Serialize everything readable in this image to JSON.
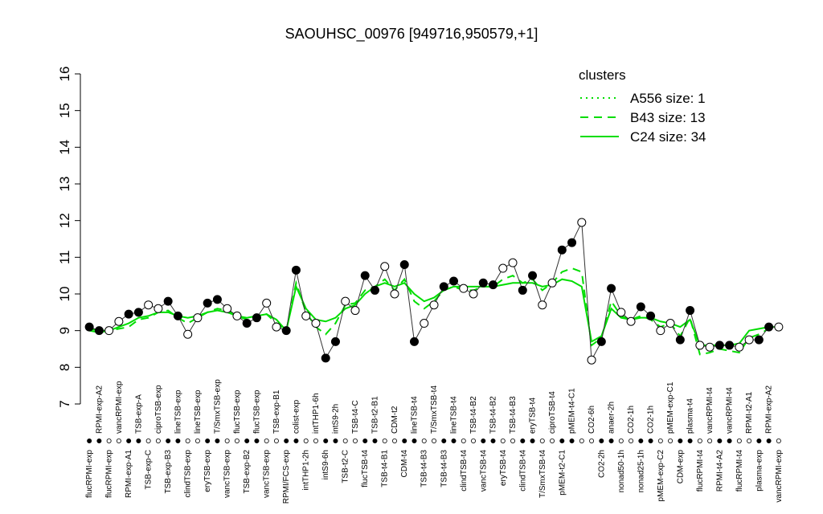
{
  "chart_data": {
    "type": "line",
    "title": "SAOUHSC_00976 [949716,950579,+1]",
    "categories": [
      "flucRPMI-exp",
      "RPMI-exp-A2",
      "flucRPMI-exp",
      "vancRPMI-exp",
      "RPMI-exp-A1",
      "TSB-exp-A",
      "TSB-exp-C",
      "ciproTSB-exp",
      "TSB-exp-B3",
      "lineTSB-exp",
      "clindTSB-exp",
      "lineTSB-exp",
      "eryTSB-exp",
      "T/SmxTSB-exp",
      "vancTSB-exp",
      "flucTSB-exp",
      "TSB-exp-B2",
      "flucTSB-exp",
      "vancTSB-exp",
      "TSB-exp-B1",
      "RPMI/FCS-exp",
      "colist-exp",
      "intTHP1-2h",
      "intTHP1-6h",
      "intS9-6h",
      "intS9-2h",
      "TSB-t2-C",
      "TSB-t4-C",
      "flucTSB-t4",
      "TSB-t2-B1",
      "TSB-t4-B1",
      "CDM-t2",
      "CDM-t4",
      "lineTSB-t4",
      "TSB-t4-B3",
      "T/SmxTSB-t4",
      "TSB-t4-B3",
      "lineTSB-t4",
      "clindTSB-t4",
      "TSB-t4-B2",
      "vancTSB-t4",
      "TSB-t4-B2",
      "eryTSB-t4",
      "TSB-t4-B3",
      "clindTSB-t4",
      "eryTSB-t4",
      "T/SmxTSB-t4",
      "ciproTSB-t4",
      "pMEM-t2-C1",
      "pMEM-t4-C1",
      null,
      "CO2-6h",
      "CO2-2h",
      "anaer-2h",
      "nonad50-1h",
      "CO2-1h",
      "nonad25-1h",
      "CO2-1h",
      "pMEM-exp-C2",
      "pMEM-exp-C1",
      "CDM-exp",
      "plasma-t4",
      "flucRPMI-t4",
      "vancRPMI-t4",
      "RPMI-t4-A2",
      "vancRPMI-t4",
      "flucRPMI-t4",
      "RPMI-t2-A1",
      "plasma-exp",
      "RPMI-exp-A2",
      "vancRPMI-exp"
    ],
    "values": [
      9.1,
      9.0,
      9.0,
      9.25,
      9.45,
      9.5,
      9.7,
      9.6,
      9.8,
      9.4,
      8.9,
      9.35,
      9.75,
      9.85,
      9.6,
      9.4,
      9.2,
      9.35,
      9.75,
      9.1,
      9.0,
      10.65,
      9.4,
      9.2,
      8.25,
      8.7,
      9.8,
      9.55,
      10.5,
      10.1,
      10.75,
      10.0,
      10.8,
      8.7,
      9.2,
      9.7,
      10.2,
      10.35,
      10.15,
      10.0,
      10.3,
      10.25,
      10.7,
      10.85,
      10.1,
      10.5,
      9.7,
      10.3,
      11.2,
      11.4,
      11.95,
      8.2,
      8.7,
      10.15,
      9.5,
      9.25,
      9.65,
      9.4,
      9.0,
      9.2,
      8.75,
      9.55,
      8.6,
      8.55,
      8.6,
      8.6,
      8.55,
      8.75,
      8.75,
      9.1,
      9.1
    ],
    "color": "#333333",
    "ylim": [
      7,
      16
    ],
    "yticks": [
      7,
      8,
      9,
      10,
      11,
      12,
      13,
      14,
      15,
      16
    ],
    "legend": "top-right",
    "legend_title": "clusters",
    "series": [
      {
        "name": "A556 size: 1",
        "color": "#00dd00",
        "dash": "dotted"
      },
      {
        "name": "B43 size: 13",
        "color": "#00dd00",
        "dash": "dashed",
        "values": [
          9.0,
          8.95,
          9.0,
          9.05,
          9.1,
          9.3,
          9.35,
          9.5,
          9.55,
          9.35,
          9.2,
          9.35,
          9.5,
          9.6,
          9.55,
          9.4,
          9.3,
          9.4,
          9.45,
          9.2,
          9.0,
          10.3,
          9.5,
          9.1,
          8.9,
          9.2,
          9.7,
          9.75,
          10.1,
          10.2,
          10.4,
          10.1,
          10.4,
          9.8,
          9.6,
          9.8,
          10.1,
          10.2,
          10.1,
          10.1,
          10.2,
          10.2,
          10.4,
          10.5,
          10.3,
          10.4,
          10.1,
          10.3,
          10.6,
          10.7,
          10.6,
          8.6,
          8.8,
          9.8,
          9.4,
          9.3,
          9.4,
          9.3,
          9.1,
          9.2,
          8.85,
          9.35,
          8.35,
          8.4,
          8.5,
          8.45,
          8.4,
          8.8,
          8.9,
          9.05,
          9.1
        ]
      },
      {
        "name": "C24 size: 34",
        "color": "#00dd00",
        "dash": "solid",
        "values": [
          9.05,
          9.0,
          9.0,
          9.1,
          9.2,
          9.35,
          9.4,
          9.5,
          9.5,
          9.4,
          9.35,
          9.4,
          9.5,
          9.55,
          9.5,
          9.4,
          9.35,
          9.4,
          9.45,
          9.3,
          9.0,
          10.2,
          9.6,
          9.3,
          9.25,
          9.35,
          9.6,
          9.7,
          10.0,
          10.2,
          10.3,
          10.2,
          10.3,
          10.0,
          9.8,
          9.9,
          10.1,
          10.2,
          10.2,
          10.2,
          10.2,
          10.2,
          10.25,
          10.3,
          10.3,
          10.3,
          10.2,
          10.25,
          10.4,
          10.35,
          10.2,
          8.7,
          8.85,
          9.6,
          9.35,
          9.3,
          9.35,
          9.35,
          9.25,
          9.2,
          9.1,
          9.3,
          8.6,
          8.6,
          8.6,
          8.6,
          8.65,
          9.0,
          9.05,
          9.1,
          9.1
        ]
      }
    ]
  }
}
